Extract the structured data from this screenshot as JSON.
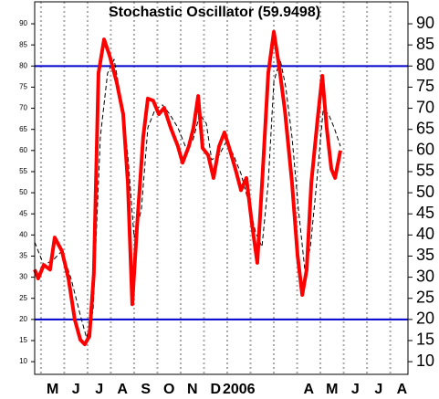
{
  "chart_data": {
    "type": "line",
    "title": "Stochastic Oscillator (59.9498)",
    "xlim": [
      -0.27,
      15.76
    ],
    "ylim": [
      7,
      95.2
    ],
    "yticks": [
      10,
      15,
      20,
      25,
      30,
      35,
      40,
      45,
      50,
      55,
      60,
      65,
      70,
      75,
      80,
      85,
      90
    ],
    "xticks": [
      {
        "value": 0.5,
        "label": "M"
      },
      {
        "value": 1.5,
        "label": "J"
      },
      {
        "value": 2.5,
        "label": "J"
      },
      {
        "value": 3.5,
        "label": "A"
      },
      {
        "value": 4.5,
        "label": "S"
      },
      {
        "value": 5.5,
        "label": "O"
      },
      {
        "value": 6.5,
        "label": "N"
      },
      {
        "value": 7.5,
        "label": "D"
      },
      {
        "value": 8.5,
        "label": "2006"
      },
      {
        "value": 11.5,
        "label": "A"
      },
      {
        "value": 12.5,
        "label": "M"
      },
      {
        "value": 13.5,
        "label": "J"
      },
      {
        "value": 14.5,
        "label": "J"
      },
      {
        "value": 15.5,
        "label": "A"
      }
    ],
    "xgrid": [
      0,
      1,
      2,
      3,
      4,
      5,
      6,
      7,
      8,
      9,
      10,
      11,
      12,
      13,
      14,
      15
    ],
    "hlines": [
      80,
      20
    ],
    "hline_color": "#0000cc",
    "series": [
      {
        "color": "#000000",
        "dashed": true,
        "width": 1,
        "x": [
          -0.27,
          0.12,
          0.51,
          0.9,
          1.29,
          1.69,
          1.96,
          2.24,
          2.55,
          2.86,
          3.14,
          3.45,
          3.73,
          4.0,
          4.31,
          4.59,
          4.9,
          5.22,
          5.53,
          5.88,
          6.2,
          6.51,
          6.82,
          7.1,
          7.33,
          7.65,
          7.96,
          8.27,
          8.59,
          8.9,
          9.22,
          9.49,
          9.76,
          10.0,
          10.27,
          10.51,
          10.78,
          11.06,
          11.33,
          11.57,
          11.84,
          12.12,
          12.35,
          12.59,
          12.86
        ],
        "values": [
          38.3,
          32.9,
          34,
          36.2,
          29.7,
          21,
          15.6,
          22.1,
          63.2,
          78.3,
          81.6,
          71.8,
          58.9,
          39.4,
          45.9,
          65.4,
          69.7,
          70.8,
          68.6,
          65.4,
          61,
          62.1,
          68.6,
          66.4,
          57.8,
          58.9,
          62.1,
          58.9,
          54.5,
          48.1,
          40.5,
          37.2,
          52.4,
          76.2,
          81.6,
          75.1,
          63.2,
          45.9,
          31.8,
          37.2,
          52.4,
          69.7,
          68.6,
          65.4,
          61
        ]
      },
      {
        "color": "#ff0000",
        "dashed": false,
        "width": 4,
        "x": [
          -0.27,
          -0.12,
          0.12,
          0.39,
          0.59,
          0.9,
          1.18,
          1.45,
          1.69,
          1.88,
          2.08,
          2.27,
          2.47,
          2.71,
          2.94,
          3.25,
          3.53,
          3.73,
          3.92,
          4.12,
          4.39,
          4.59,
          4.82,
          5.06,
          5.29,
          5.57,
          5.88,
          6.08,
          6.35,
          6.55,
          6.75,
          6.94,
          7.18,
          7.41,
          7.65,
          7.88,
          8.12,
          8.35,
          8.59,
          8.82,
          9.06,
          9.29,
          9.53,
          9.76,
          10.0,
          10.24,
          10.47,
          10.78,
          11.02,
          11.22,
          11.41,
          11.61,
          11.88,
          12.08,
          12.27,
          12.47,
          12.63,
          12.86
        ],
        "values": [
          31.8,
          29.7,
          32.9,
          31.8,
          39.4,
          36.2,
          29.7,
          20,
          15.2,
          14.1,
          16,
          30.8,
          78.3,
          86.3,
          82.6,
          76.2,
          68.6,
          52.4,
          23.6,
          41.6,
          63.2,
          72.3,
          71.8,
          68.6,
          70.1,
          65.4,
          61,
          57.1,
          61,
          65.4,
          72.9,
          60.6,
          58.9,
          53.5,
          61,
          64.3,
          60,
          55.6,
          50.6,
          53.5,
          42.6,
          33.4,
          55.6,
          78.3,
          88.1,
          79.4,
          69.7,
          52.4,
          35.1,
          25.8,
          31.8,
          52.4,
          67.5,
          77.7,
          65.4,
          55.6,
          53.5,
          60
        ]
      }
    ]
  }
}
